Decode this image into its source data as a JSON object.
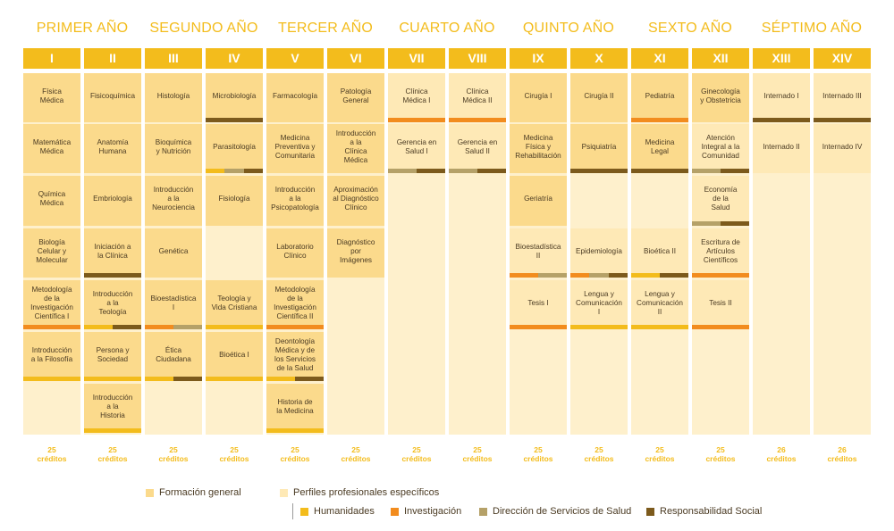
{
  "colors": {
    "header": "#F3BC1C",
    "general": "#FBDA8C",
    "profile": "#FEE9B6",
    "empty": "#FEF0CC",
    "H": "#F3BC1C",
    "I": "#F28C1E",
    "D": "#B5A168",
    "R": "#7C5A1C"
  },
  "years": [
    "PRIMER AÑO",
    "SEGUNDO AÑO",
    "TERCER AÑO",
    "CUARTO AÑO",
    "QUINTO AÑO",
    "SEXTO AÑO",
    "SÉPTIMO AÑO"
  ],
  "semesters": [
    {
      "numeral": "I",
      "credits": [
        "25",
        "créditos"
      ],
      "courses": [
        {
          "slot": 0,
          "type": "gen",
          "lines": [
            "Física",
            "Médica"
          ],
          "stripe": []
        },
        {
          "slot": 1,
          "type": "gen",
          "lines": [
            "Matemática",
            "Médica"
          ],
          "stripe": []
        },
        {
          "slot": 2,
          "type": "gen",
          "lines": [
            "Química",
            "Médica"
          ],
          "stripe": []
        },
        {
          "slot": 3,
          "type": "gen",
          "lines": [
            "Biología",
            "Celular y",
            "Molecular"
          ],
          "stripe": []
        },
        {
          "slot": 4,
          "type": "gen",
          "lines": [
            "Metodología",
            "de la",
            "Investigación",
            "Científica I"
          ],
          "stripe": [
            "I"
          ]
        },
        {
          "slot": 5,
          "type": "gen",
          "lines": [
            "Introducción",
            "a la Filosofía"
          ],
          "stripe": [
            "H"
          ]
        }
      ]
    },
    {
      "numeral": "II",
      "credits": [
        "25",
        "créditos"
      ],
      "courses": [
        {
          "slot": 0,
          "type": "gen",
          "lines": [
            "Fisicoquímica"
          ],
          "stripe": []
        },
        {
          "slot": 1,
          "type": "gen",
          "lines": [
            "Anatomía",
            "Humana"
          ],
          "stripe": []
        },
        {
          "slot": 2,
          "type": "gen",
          "lines": [
            "Embriología"
          ],
          "stripe": []
        },
        {
          "slot": 3,
          "type": "gen",
          "lines": [
            "Iniciación a",
            "la Clínica"
          ],
          "stripe": [
            "R"
          ]
        },
        {
          "slot": 4,
          "type": "gen",
          "lines": [
            "Introducción",
            "a la",
            "Teología"
          ],
          "stripe": [
            "H",
            "R"
          ]
        },
        {
          "slot": 5,
          "type": "gen",
          "lines": [
            "Persona y",
            "Sociedad"
          ],
          "stripe": [
            "H"
          ]
        },
        {
          "slot": 6,
          "type": "gen",
          "lines": [
            "Introducción",
            "a la",
            "Historia"
          ],
          "stripe": [
            "H"
          ]
        }
      ]
    },
    {
      "numeral": "III",
      "credits": [
        "25",
        "créditos"
      ],
      "courses": [
        {
          "slot": 0,
          "type": "gen",
          "lines": [
            "Histología"
          ],
          "stripe": []
        },
        {
          "slot": 1,
          "type": "gen",
          "lines": [
            "Bioquímica",
            "y Nutrición"
          ],
          "stripe": []
        },
        {
          "slot": 2,
          "type": "gen",
          "lines": [
            "Introducción",
            "a la",
            "Neurociencia"
          ],
          "stripe": []
        },
        {
          "slot": 3,
          "type": "gen",
          "lines": [
            "Genética"
          ],
          "stripe": []
        },
        {
          "slot": 4,
          "type": "gen",
          "lines": [
            "Bioestadística",
            "I"
          ],
          "stripe": [
            "I",
            "D"
          ]
        },
        {
          "slot": 5,
          "type": "gen",
          "lines": [
            "Ética",
            "Ciudadana"
          ],
          "stripe": [
            "H",
            "R"
          ]
        }
      ]
    },
    {
      "numeral": "IV",
      "credits": [
        "25",
        "créditos"
      ],
      "courses": [
        {
          "slot": 0,
          "type": "gen",
          "lines": [
            "Microbiología"
          ],
          "stripe": [
            "R"
          ]
        },
        {
          "slot": 1,
          "type": "gen",
          "lines": [
            "Parasitología"
          ],
          "stripe": [
            "H",
            "D",
            "R"
          ]
        },
        {
          "slot": 2,
          "type": "gen",
          "lines": [
            "Fisiología"
          ],
          "stripe": []
        },
        {
          "slot": 4,
          "type": "gen",
          "lines": [
            "Teología y",
            "Vida Cristiana"
          ],
          "stripe": [
            "H"
          ]
        },
        {
          "slot": 5,
          "type": "gen",
          "lines": [
            "Bioética I"
          ],
          "stripe": [
            "H"
          ]
        }
      ]
    },
    {
      "numeral": "V",
      "credits": [
        "25",
        "créditos"
      ],
      "courses": [
        {
          "slot": 0,
          "type": "gen",
          "lines": [
            "Farmacología"
          ],
          "stripe": []
        },
        {
          "slot": 1,
          "type": "gen",
          "lines": [
            "Medicina",
            "Preventiva y",
            "Comunitaria"
          ],
          "stripe": []
        },
        {
          "slot": 2,
          "type": "gen",
          "lines": [
            "Introducción",
            "a la",
            "Psicopatología"
          ],
          "stripe": []
        },
        {
          "slot": 3,
          "type": "gen",
          "lines": [
            "Laboratorio",
            "Clínico"
          ],
          "stripe": []
        },
        {
          "slot": 4,
          "type": "gen",
          "lines": [
            "Metodología",
            "de la",
            "Investigación",
            "Científica II"
          ],
          "stripe": [
            "I"
          ]
        },
        {
          "slot": 5,
          "type": "gen",
          "lines": [
            "Deontología",
            "Médica y de",
            "los Servicios",
            "de la Salud"
          ],
          "stripe": [
            "H",
            "R"
          ]
        },
        {
          "slot": 6,
          "type": "gen",
          "lines": [
            "Historia de",
            "la Medicina"
          ],
          "stripe": [
            "H"
          ]
        }
      ]
    },
    {
      "numeral": "VI",
      "credits": [
        "25",
        "créditos"
      ],
      "courses": [
        {
          "slot": 0,
          "type": "gen",
          "lines": [
            "Patología",
            "General"
          ],
          "stripe": []
        },
        {
          "slot": 1,
          "type": "gen",
          "lines": [
            "Introducción",
            "a la",
            "Clínica",
            "Médica"
          ],
          "stripe": []
        },
        {
          "slot": 2,
          "type": "gen",
          "lines": [
            "Aproximación",
            "al Diagnóstico",
            "Clínico"
          ],
          "stripe": []
        },
        {
          "slot": 3,
          "type": "gen",
          "lines": [
            "Diagnóstico",
            "por",
            "Imágenes"
          ],
          "stripe": []
        }
      ]
    },
    {
      "numeral": "VII",
      "credits": [
        "25",
        "créditos"
      ],
      "courses": [
        {
          "slot": 0,
          "type": "pro",
          "lines": [
            "Clínica",
            "Médica I"
          ],
          "stripe": [
            "I"
          ]
        },
        {
          "slot": 1,
          "type": "pro",
          "lines": [
            "Gerencia en",
            "Salud I"
          ],
          "stripe": [
            "D",
            "R"
          ]
        }
      ]
    },
    {
      "numeral": "VIII",
      "credits": [
        "25",
        "créditos"
      ],
      "courses": [
        {
          "slot": 0,
          "type": "pro",
          "lines": [
            "Clínica",
            "Médica II"
          ],
          "stripe": [
            "I"
          ]
        },
        {
          "slot": 1,
          "type": "pro",
          "lines": [
            "Gerencia en",
            "Salud II"
          ],
          "stripe": [
            "D",
            "R"
          ]
        }
      ]
    },
    {
      "numeral": "IX",
      "credits": [
        "25",
        "créditos"
      ],
      "courses": [
        {
          "slot": 0,
          "type": "gen",
          "lines": [
            "Cirugía I"
          ],
          "stripe": []
        },
        {
          "slot": 1,
          "type": "gen",
          "lines": [
            "Medicina",
            "Física y",
            "Rehabilitación"
          ],
          "stripe": []
        },
        {
          "slot": 2,
          "type": "gen",
          "lines": [
            "Geriatría"
          ],
          "stripe": []
        },
        {
          "slot": 3,
          "type": "pro",
          "lines": [
            "Bioestadística",
            "II"
          ],
          "stripe": [
            "I",
            "D"
          ]
        },
        {
          "slot": 4,
          "type": "pro",
          "lines": [
            "Tesis I"
          ],
          "stripe": [
            "I"
          ]
        }
      ]
    },
    {
      "numeral": "X",
      "credits": [
        "25",
        "créditos"
      ],
      "courses": [
        {
          "slot": 0,
          "type": "gen",
          "lines": [
            "Cirugía II"
          ],
          "stripe": []
        },
        {
          "slot": 1,
          "type": "gen",
          "lines": [
            "Psiquiatría"
          ],
          "stripe": [
            "R"
          ]
        },
        {
          "slot": 3,
          "type": "pro",
          "lines": [
            "Epidemiología"
          ],
          "stripe": [
            "I",
            "D",
            "R"
          ]
        },
        {
          "slot": 4,
          "type": "pro",
          "lines": [
            "Lengua y",
            "Comunicación",
            "I"
          ],
          "stripe": [
            "H"
          ]
        }
      ]
    },
    {
      "numeral": "XI",
      "credits": [
        "25",
        "créditos"
      ],
      "courses": [
        {
          "slot": 0,
          "type": "gen",
          "lines": [
            "Pediatría"
          ],
          "stripe": [
            "I"
          ]
        },
        {
          "slot": 1,
          "type": "gen",
          "lines": [
            "Medicina",
            "Legal"
          ],
          "stripe": [
            "R"
          ]
        },
        {
          "slot": 3,
          "type": "pro",
          "lines": [
            "Bioética II"
          ],
          "stripe": [
            "H",
            "R"
          ]
        },
        {
          "slot": 4,
          "type": "pro",
          "lines": [
            "Lengua y",
            "Comunicación",
            "II"
          ],
          "stripe": [
            "H"
          ]
        }
      ]
    },
    {
      "numeral": "XII",
      "credits": [
        "25",
        "créditos"
      ],
      "courses": [
        {
          "slot": 0,
          "type": "gen",
          "lines": [
            "Ginecología",
            "y Obstetricia"
          ],
          "stripe": []
        },
        {
          "slot": 1,
          "type": "pro",
          "lines": [
            "Atención",
            "Integral a la",
            "Comunidad"
          ],
          "stripe": [
            "D",
            "R"
          ]
        },
        {
          "slot": 2,
          "type": "pro",
          "lines": [
            "Economía",
            "de la",
            "Salud"
          ],
          "stripe": [
            "D",
            "R"
          ]
        },
        {
          "slot": 3,
          "type": "pro",
          "lines": [
            "Escritura de",
            "Artículos",
            "Científicos"
          ],
          "stripe": [
            "I"
          ]
        },
        {
          "slot": 4,
          "type": "pro",
          "lines": [
            "Tesis II"
          ],
          "stripe": [
            "I"
          ]
        }
      ]
    },
    {
      "numeral": "XIII",
      "credits": [
        "26",
        "créditos"
      ],
      "courses": [
        {
          "slot": 0,
          "type": "pro",
          "lines": [
            "Internado I"
          ],
          "stripe": [
            "R"
          ]
        },
        {
          "slot": 1,
          "type": "pro",
          "lines": [
            "Internado II"
          ],
          "stripe": []
        }
      ]
    },
    {
      "numeral": "XIV",
      "credits": [
        "26",
        "créditos"
      ],
      "courses": [
        {
          "slot": 0,
          "type": "pro",
          "lines": [
            "Internado III"
          ],
          "stripe": [
            "R"
          ]
        },
        {
          "slot": 1,
          "type": "pro",
          "lines": [
            "Internado IV"
          ],
          "stripe": []
        }
      ]
    }
  ],
  "legend": {
    "general": "Formación general",
    "profile": "Perfiles profesionales específicos",
    "humanidades": "Humanidades",
    "investigacion": "Investigación",
    "direccion": "Dirección de Servicios de Salud",
    "responsabilidad": "Responsabilidad Social"
  }
}
